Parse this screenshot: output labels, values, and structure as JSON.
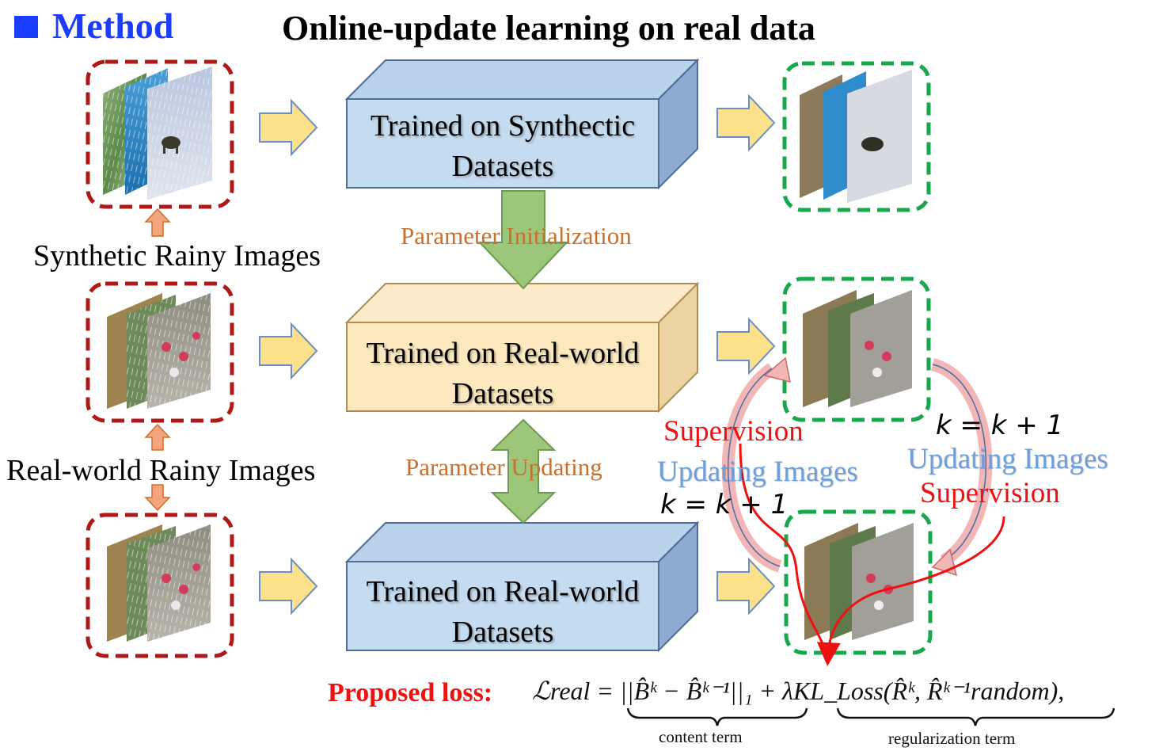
{
  "header": {
    "section": "Method",
    "title": "Online-update learning on real data"
  },
  "inputs": {
    "synthetic_label": "Synthetic Rainy Images",
    "real_label": "Real-world Rainy Images"
  },
  "blocks": [
    {
      "line1": "Trained on Synthectic",
      "line2": "Datasets",
      "color": "#c5dcf0"
    },
    {
      "line1": "Trained on Real-world",
      "line2": "Datasets",
      "color": "#fde9bf"
    },
    {
      "line1": "Trained on Real-world",
      "line2": "Datasets",
      "color": "#c5dcf0"
    }
  ],
  "arrows": {
    "init_label": "Parameter Initialization",
    "update_label": "Parameter Updating"
  },
  "loop_left": {
    "supervision": "Supervision",
    "updating": "Updating Images",
    "counter": "k = k + 1"
  },
  "loop_right": {
    "counter": "k = k + 1",
    "updating": "Updating Images",
    "supervision": "Supervision"
  },
  "loss": {
    "label": "Proposed loss:",
    "formula": "ℒreal = ||B̂ᵏ − B̂ᵏ⁻¹||₁ + λKL_Loss(R̂ᵏ, R̂ᵏ⁻¹random),",
    "content_term": "content term",
    "regularization_term": "regularization term"
  },
  "colors": {
    "heading_blue": "#1a3dff",
    "input_frame": "#b01818",
    "output_frame": "#16a84a",
    "label_orange": "#c8702f",
    "supervision_red": "#ee1111",
    "updating_blue": "#6f9fd8"
  }
}
